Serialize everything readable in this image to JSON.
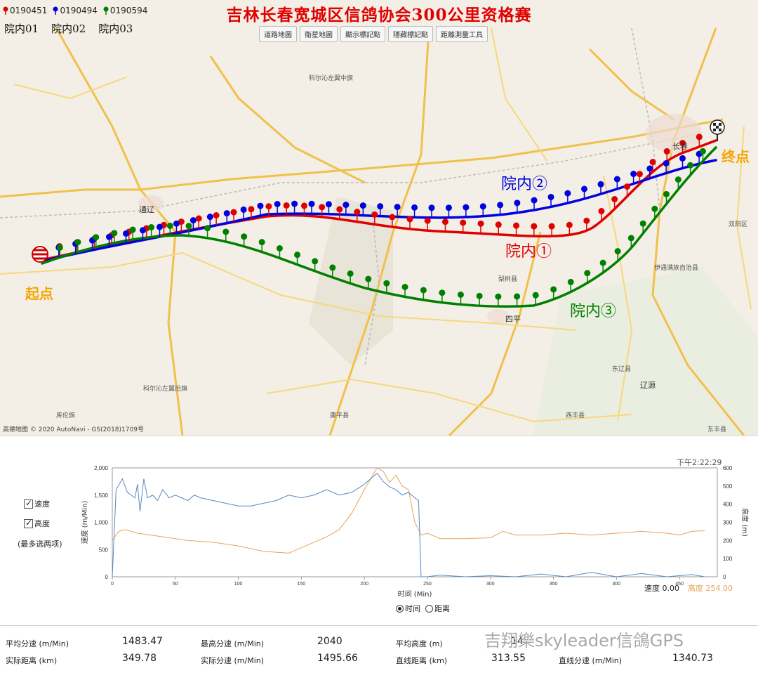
{
  "title": "吉林长春宽城区信鸽协会300公里资格赛",
  "legend": [
    {
      "name": "0190451",
      "color": "#e00000"
    },
    {
      "name": "0190494",
      "color": "#0000e0"
    },
    {
      "name": "0190594",
      "color": "#008000"
    }
  ],
  "birds": [
    "院内01",
    "院内02",
    "院内03"
  ],
  "map_buttons": [
    "道路地圖",
    "衛星地圖",
    "顯示標記點",
    "隱藏標記點",
    "距離測量工具"
  ],
  "map_labels": {
    "start": "起点",
    "end": "终点",
    "route1": "院内①",
    "route2": "院内②",
    "route3": "院内③"
  },
  "colors": {
    "red": "#e00000",
    "blue": "#0000e0",
    "green": "#008000",
    "road": "#f2c04a",
    "title": "#e00000",
    "endpoint": "#f5a500"
  },
  "map_places": [
    "科尔沁左翼中旗",
    "通辽",
    "长春",
    "双阳区",
    "伊通满族自治县",
    "梨树县",
    "四平",
    "东辽县",
    "辽源",
    "东丰县",
    "科尔沁左翼后旗",
    "康平县",
    "西丰县",
    "库伦旗"
  ],
  "copyright": "高德地图 © 2020 AutoNavi - GS(2018)1709号",
  "chart_controls": {
    "checkbox_speed": "速度",
    "checkbox_altitude": "高度",
    "note": "(最多选两项)",
    "timestamp": "下午2:22:29",
    "xlabel": "时间 (Min)",
    "radio_time": "时间",
    "radio_distance": "距离",
    "speed_readout": "速度 0.00",
    "altitude_readout": "高度 254.00"
  },
  "chart_data": {
    "type": "line",
    "xlabel": "时间 (Min)",
    "ylabel_left": "速度 (m/Min)",
    "ylabel_right": "高度 (m)",
    "xlim": [
      0,
      480
    ],
    "ylim_left": [
      0,
      2000
    ],
    "ylim_right": [
      0,
      600
    ],
    "x_ticks": [
      0,
      50,
      100,
      150,
      200,
      250,
      300,
      350,
      400,
      450
    ],
    "y_left_ticks": [
      0,
      500,
      1000,
      1500,
      2000
    ],
    "y_right_ticks": [
      0,
      100,
      200,
      300,
      400,
      500,
      600
    ],
    "series": [
      {
        "name": "速度",
        "color": "#5b86c5",
        "x": [
          0,
          3,
          8,
          12,
          15,
          18,
          20,
          22,
          25,
          28,
          32,
          36,
          40,
          45,
          50,
          55,
          60,
          65,
          70,
          80,
          90,
          100,
          110,
          120,
          130,
          140,
          150,
          160,
          170,
          180,
          190,
          200,
          205,
          210,
          215,
          220,
          225,
          230,
          235,
          240,
          243,
          245,
          250,
          260,
          280,
          300,
          320,
          340,
          360,
          380,
          400,
          420,
          440,
          460,
          470
        ],
        "values": [
          0,
          1600,
          1800,
          1550,
          1500,
          1450,
          1700,
          1200,
          1800,
          1450,
          1500,
          1400,
          1600,
          1450,
          1500,
          1450,
          1400,
          1500,
          1450,
          1400,
          1350,
          1300,
          1300,
          1350,
          1400,
          1500,
          1450,
          1500,
          1600,
          1500,
          1550,
          1700,
          1800,
          1900,
          1750,
          1650,
          1600,
          1500,
          1550,
          1450,
          1400,
          0,
          0,
          30,
          0,
          20,
          0,
          50,
          0,
          80,
          0,
          60,
          0,
          40,
          0
        ]
      },
      {
        "name": "高度",
        "color": "#e8a35a",
        "x": [
          0,
          5,
          10,
          20,
          30,
          40,
          60,
          80,
          100,
          120,
          140,
          150,
          160,
          170,
          180,
          190,
          200,
          210,
          215,
          220,
          225,
          230,
          235,
          240,
          245,
          250,
          260,
          280,
          300,
          310,
          315,
          320,
          340,
          360,
          380,
          400,
          420,
          440,
          450,
          460,
          470
        ],
        "values": [
          200,
          250,
          260,
          240,
          230,
          220,
          200,
          190,
          170,
          140,
          130,
          160,
          190,
          220,
          260,
          350,
          480,
          600,
          580,
          520,
          560,
          500,
          480,
          300,
          230,
          240,
          210,
          210,
          215,
          250,
          240,
          230,
          230,
          240,
          230,
          240,
          250,
          240,
          230,
          250,
          254
        ]
      }
    ]
  },
  "stats": [
    {
      "label": "平均分速 (m/Min)",
      "value": "1483.47"
    },
    {
      "label": "最高分速 (m/Min)",
      "value": "2040"
    },
    {
      "label": "平均高度 (m)",
      "value": "14"
    },
    {
      "label": "实际距离 (km)",
      "value": "349.78"
    },
    {
      "label": "实际分速 (m/Min)",
      "value": "1495.66"
    },
    {
      "label": "直线距离 (km)",
      "value": "313.55"
    },
    {
      "label": "直线分速 (m/Min)",
      "value": "1340.73"
    }
  ],
  "watermark": "吉翔樂skyleader信鴿GPS"
}
